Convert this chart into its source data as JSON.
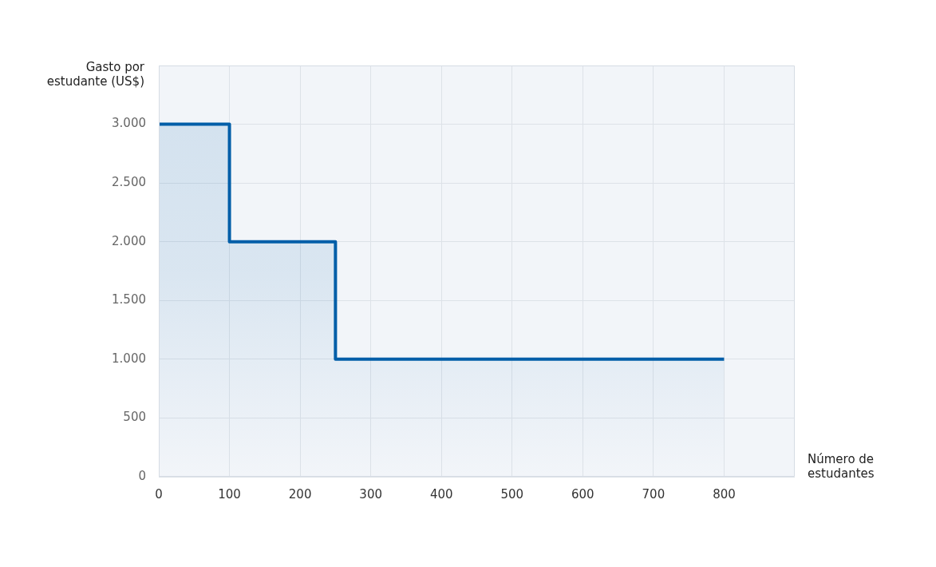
{
  "chart_data": {
    "type": "area",
    "xlabel": "Número de\nestudantes",
    "ylabel": "Gasto por\nestudante (US$)",
    "x": [
      0,
      100,
      100,
      250,
      250,
      800
    ],
    "series": [
      {
        "color": "#005ea8",
        "values": [
          3000,
          3000,
          2000,
          2000,
          1000,
          1000
        ]
      }
    ],
    "xlim": [
      0,
      900
    ],
    "xticks": [
      0,
      100,
      200,
      300,
      400,
      500,
      600,
      700,
      800
    ],
    "ylim": [
      0,
      3500
    ],
    "yticks": [
      {
        "value": 0,
        "label": "0"
      },
      {
        "value": 500,
        "label": "500"
      },
      {
        "value": 1000,
        "label": "1.000"
      },
      {
        "value": 1500,
        "label": "1.500"
      },
      {
        "value": 2000,
        "label": "2.000"
      },
      {
        "value": 2500,
        "label": "2.500"
      },
      {
        "value": 3000,
        "label": "3.000"
      }
    ],
    "grid": true,
    "legend": false,
    "marker": "none"
  }
}
